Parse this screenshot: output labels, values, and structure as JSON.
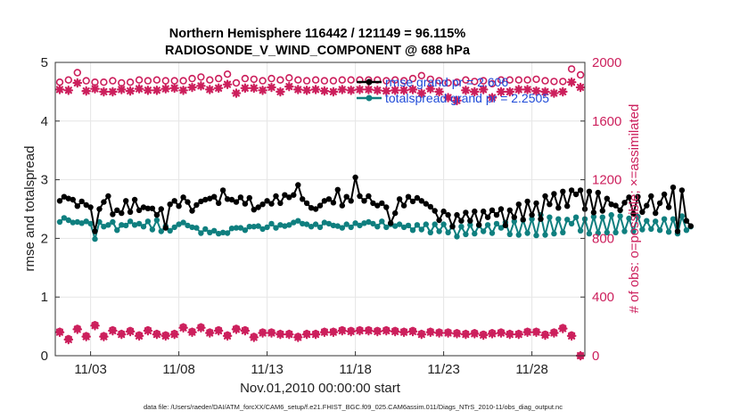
{
  "chart_data": {
    "type": "line",
    "title": "Northern Hemisphere 116442 / 121149 = 96.115%",
    "subtitle": "RADIOSONDE_V_WIND_COMPONENT @ 688 hPa",
    "xlabel": "Nov.01,2010 00:00:00 start",
    "ylabel": "rmse and totalspread",
    "y2label": "# of obs: o=possible; ×=assimilated",
    "footer": "data file: /Users/raeder/DAI/ATM_forcXX/CAM6_setup/f.e21.FHIST_BGC.f09_025.CAM6assim.011/Diags_NTrS_2010-11/obs_diag_output.nc",
    "xlim": [
      1.0,
      31.0
    ],
    "ylim": [
      0,
      5
    ],
    "y2lim": [
      0,
      2000
    ],
    "xticks": [
      {
        "x": 3.0,
        "label": "11/03"
      },
      {
        "x": 8.0,
        "label": "11/08"
      },
      {
        "x": 13.0,
        "label": "11/13"
      },
      {
        "x": 18.0,
        "label": "11/18"
      },
      {
        "x": 23.0,
        "label": "11/23"
      },
      {
        "x": 28.0,
        "label": "11/28"
      }
    ],
    "yticks": [
      {
        "v": 0,
        "label": "0"
      },
      {
        "v": 1,
        "label": "1"
      },
      {
        "v": 2,
        "label": "2"
      },
      {
        "v": 3,
        "label": "3"
      },
      {
        "v": 4,
        "label": "4"
      },
      {
        "v": 5,
        "label": "5"
      }
    ],
    "y2ticks": [
      {
        "v": 0,
        "label": "0"
      },
      {
        "v": 400,
        "label": "400"
      },
      {
        "v": 800,
        "label": "800"
      },
      {
        "v": 1200,
        "label": "1200"
      },
      {
        "v": 1600,
        "label": "1600"
      },
      {
        "v": 2000,
        "label": "2000"
      }
    ],
    "grid": true,
    "legend_position": "top-right",
    "colors": {
      "rmse": "#000000",
      "spread": "#0f7f7f",
      "obs": "#cc1f5c",
      "legend_text": "#1f4bd8",
      "grid": "#e6e6e6"
    },
    "series": [
      {
        "name": "rmse",
        "legend": "rmse grand pr = 2.606",
        "axis": "left",
        "x_start": 1.25,
        "x_step": 0.25,
        "values": [
          2.64,
          2.71,
          2.68,
          2.66,
          2.55,
          2.63,
          2.57,
          2.53,
          2.12,
          2.5,
          2.62,
          2.72,
          2.41,
          2.48,
          2.43,
          2.64,
          2.45,
          2.66,
          2.48,
          2.53,
          2.51,
          2.51,
          2.4,
          2.5,
          2.18,
          2.58,
          2.64,
          2.55,
          2.7,
          2.62,
          2.47,
          2.57,
          2.63,
          2.66,
          2.68,
          2.71,
          2.6,
          2.82,
          2.67,
          2.66,
          2.62,
          2.7,
          2.59,
          2.69,
          2.49,
          2.53,
          2.58,
          2.64,
          2.59,
          2.72,
          2.6,
          2.74,
          2.7,
          2.74,
          2.91,
          2.67,
          2.6,
          2.52,
          2.5,
          2.56,
          2.64,
          2.67,
          2.61,
          2.83,
          2.56,
          2.71,
          2.64,
          3.04,
          2.72,
          2.64,
          2.72,
          2.6,
          2.56,
          2.6,
          2.53,
          2.26,
          2.43,
          2.67,
          2.56,
          2.71,
          2.63,
          2.69,
          2.64,
          2.59,
          2.54,
          2.47,
          2.31,
          2.46,
          2.4,
          2.2,
          2.4,
          2.3,
          2.44,
          2.3,
          2.46,
          2.23,
          2.46,
          2.36,
          2.48,
          2.4,
          2.5,
          2.22,
          2.48,
          2.36,
          2.58,
          2.32,
          2.63,
          2.4,
          2.6,
          2.33,
          2.72,
          2.58,
          2.76,
          2.52,
          2.8,
          2.55,
          2.82,
          2.75,
          2.82,
          2.5,
          2.8,
          2.44,
          2.78,
          2.47,
          2.68,
          2.58,
          2.56,
          2.48,
          2.61,
          2.7,
          2.42,
          2.71,
          2.45,
          2.56,
          2.72,
          2.43,
          2.6,
          2.75,
          2.53,
          2.87,
          2.12,
          2.82,
          2.3,
          2.21
        ]
      },
      {
        "name": "totalspread",
        "legend": "totalspread grand pr = 2.2505",
        "axis": "left",
        "x_start": 1.25,
        "x_step": 0.25,
        "values": [
          2.28,
          2.35,
          2.31,
          2.27,
          2.28,
          2.26,
          2.29,
          2.25,
          1.99,
          2.28,
          2.2,
          2.23,
          2.28,
          2.14,
          2.23,
          2.22,
          2.29,
          2.23,
          2.25,
          2.2,
          2.29,
          2.15,
          2.31,
          2.12,
          2.21,
          2.13,
          2.19,
          2.24,
          2.27,
          2.22,
          2.19,
          2.18,
          2.09,
          2.16,
          2.1,
          2.13,
          2.08,
          2.1,
          2.09,
          2.17,
          2.18,
          2.18,
          2.14,
          2.2,
          2.2,
          2.21,
          2.16,
          2.19,
          2.25,
          2.18,
          2.23,
          2.21,
          2.23,
          2.27,
          2.3,
          2.25,
          2.24,
          2.2,
          2.24,
          2.19,
          2.27,
          2.25,
          2.22,
          2.21,
          2.18,
          2.24,
          2.19,
          2.26,
          2.22,
          2.26,
          2.28,
          2.25,
          2.2,
          2.29,
          2.19,
          2.24,
          2.21,
          2.24,
          2.19,
          2.22,
          2.14,
          2.23,
          2.15,
          2.24,
          2.1,
          2.24,
          2.12,
          2.24,
          2.1,
          2.21,
          2.03,
          2.2,
          2.07,
          2.23,
          2.08,
          2.22,
          2.12,
          2.23,
          2.09,
          2.25,
          2.18,
          2.27,
          2.07,
          2.29,
          2.06,
          2.31,
          2.09,
          2.33,
          2.05,
          2.4,
          2.06,
          2.36,
          2.08,
          2.33,
          2.1,
          2.32,
          2.25,
          2.36,
          2.13,
          2.33,
          2.08,
          2.37,
          2.09,
          2.36,
          2.1,
          2.4,
          2.1,
          2.38,
          2.12,
          2.34,
          2.12,
          2.37,
          2.15,
          2.3,
          2.16,
          2.29,
          2.14,
          2.33,
          2.11,
          2.33,
          2.08,
          2.38,
          2.14,
          2.2
        ]
      },
      {
        "name": "# obs possible",
        "axis": "right",
        "marker": "o",
        "x_start": 1.25,
        "x_step": 0.5,
        "values": [
          1865,
          1880,
          1930,
          1875,
          1865,
          1865,
          1875,
          1860,
          1865,
          1880,
          1875,
          1880,
          1875,
          1875,
          1875,
          1890,
          1900,
          1880,
          1890,
          1920,
          1860,
          1890,
          1885,
          1875,
          1890,
          1880,
          1895,
          1880,
          1875,
          1880,
          1875,
          1875,
          1880,
          1880,
          1880,
          1880,
          1880,
          1875,
          1880,
          1875,
          1890,
          1910,
          1885,
          1875,
          1860,
          1865,
          1880,
          1870,
          1875,
          1855,
          1880,
          1880,
          1880,
          1880,
          1885,
          1875,
          1870,
          1870,
          1955,
          1915
        ]
      },
      {
        "name": "# obs assimilated",
        "axis": "right",
        "marker": "*",
        "x_start": 1.25,
        "x_step": 0.5,
        "values": [
          1815,
          1810,
          1860,
          1805,
          1820,
          1800,
          1800,
          1815,
          1805,
          1820,
          1810,
          1810,
          1820,
          1825,
          1810,
          1830,
          1840,
          1815,
          1825,
          1850,
          1790,
          1825,
          1825,
          1810,
          1830,
          1800,
          1835,
          1815,
          1810,
          1815,
          1805,
          1800,
          1815,
          1810,
          1815,
          1815,
          1810,
          1805,
          1810,
          1810,
          1815,
          1790,
          1820,
          1800,
          1760,
          1740,
          1810,
          1800,
          1815,
          1760,
          1800,
          1800,
          1815,
          1815,
          1805,
          1800,
          1790,
          1800,
          1865,
          1830
        ]
      },
      {
        "name": "# obs possible (lower)",
        "axis": "right",
        "marker": "o",
        "x_start": 1.25,
        "x_step": 0.5,
        "values": [
          165,
          115,
          185,
          135,
          210,
          135,
          175,
          150,
          170,
          140,
          175,
          150,
          140,
          150,
          195,
          165,
          195,
          160,
          175,
          140,
          185,
          175,
          130,
          160,
          160,
          150,
          150,
          130,
          150,
          150,
          165,
          165,
          175,
          170,
          175,
          175,
          170,
          175,
          170,
          165,
          170,
          150,
          165,
          160,
          160,
          155,
          150,
          155,
          145,
          155,
          160,
          150,
          150,
          165,
          165,
          145,
          160,
          190,
          140,
          0
        ]
      },
      {
        "name": "# obs assimilated (lower)",
        "axis": "right",
        "marker": "*",
        "x_start": 1.25,
        "x_step": 0.5,
        "values": [
          160,
          110,
          180,
          130,
          205,
          130,
          170,
          145,
          165,
          135,
          170,
          145,
          135,
          145,
          190,
          160,
          190,
          155,
          170,
          135,
          180,
          170,
          125,
          155,
          155,
          145,
          145,
          125,
          145,
          145,
          160,
          160,
          170,
          165,
          170,
          170,
          165,
          170,
          165,
          160,
          165,
          145,
          160,
          155,
          155,
          150,
          145,
          150,
          140,
          150,
          155,
          145,
          145,
          160,
          160,
          140,
          155,
          185,
          135,
          0
        ]
      }
    ]
  }
}
